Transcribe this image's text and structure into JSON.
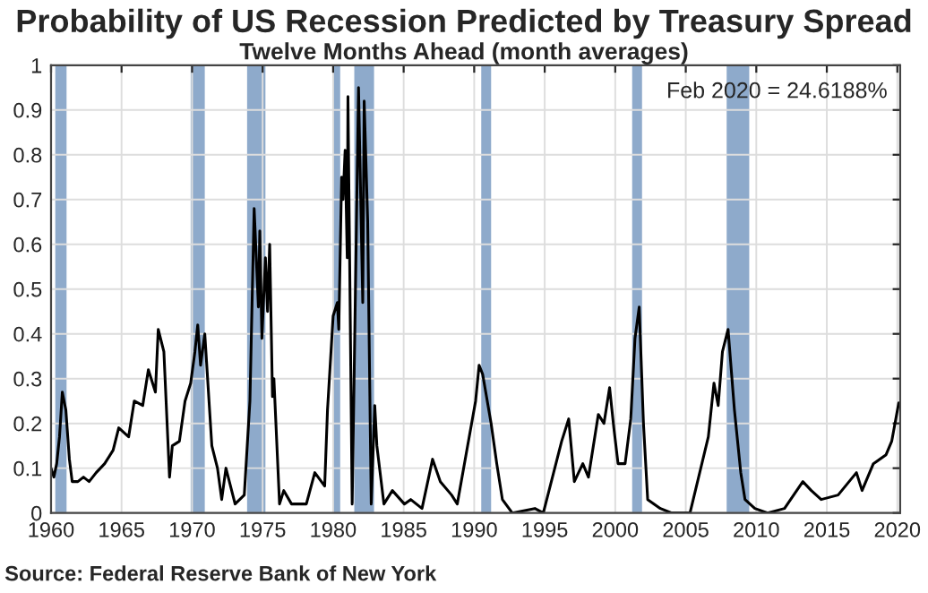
{
  "chart_data": {
    "type": "line",
    "title": "Probability of US Recession Predicted by Treasury Spread",
    "subtitle": "Twelve Months Ahead (month averages)",
    "annotations": [
      "Feb 2020 = 24.6188%",
      "Source: Federal Reserve Bank of New York"
    ],
    "series": [
      {
        "color": "#000000",
        "x": [
          1960.0,
          1960.2,
          1960.4,
          1960.6,
          1960.8,
          1961.05,
          1961.3,
          1961.5,
          1961.9,
          1962.3,
          1962.7,
          1963.2,
          1963.8,
          1964.4,
          1964.8,
          1965.5,
          1965.9,
          1966.5,
          1966.9,
          1967.4,
          1967.6,
          1968.0,
          1968.4,
          1968.6,
          1969.1,
          1969.5,
          1969.9,
          1970.2,
          1970.4,
          1970.6,
          1970.9,
          1971.4,
          1971.8,
          1972.1,
          1972.4,
          1973.05,
          1973.7,
          1974.1,
          1974.4,
          1974.7,
          1974.8,
          1974.95,
          1975.2,
          1975.35,
          1975.5,
          1975.7,
          1975.8,
          1976.2,
          1976.5,
          1977.05,
          1978.1,
          1978.7,
          1979.4,
          1979.6,
          1980.0,
          1980.3,
          1980.4,
          1980.6,
          1980.7,
          1980.85,
          1981.0,
          1981.05,
          1981.35,
          1981.8,
          1982.1,
          1982.2,
          1982.45,
          1982.7,
          1982.95,
          1983.1,
          1983.6,
          1984.2,
          1985.05,
          1985.5,
          1986.3,
          1987.05,
          1987.6,
          1988.4,
          1988.8,
          1990.1,
          1990.35,
          1990.6,
          1991.2,
          1991.6,
          1992.0,
          1992.7,
          1994.3,
          1994.9,
          1996.2,
          1996.7,
          1997.1,
          1997.7,
          1998.1,
          1998.8,
          1999.2,
          1999.6,
          1999.9,
          2000.2,
          2000.7,
          2001.1,
          2001.4,
          2001.7,
          2002.0,
          2002.3,
          2003.2,
          2004.0,
          2005.3,
          2006.6,
          2007.0,
          2007.3,
          2007.6,
          2008.0,
          2008.45,
          2008.9,
          2009.2,
          2009.9,
          2010.8,
          2012.0,
          2013.3,
          2013.9,
          2014.6,
          2015.8,
          2017.1,
          2017.5,
          2018.3,
          2019.2,
          2019.6,
          2020.1
        ],
        "values": [
          0.1,
          0.08,
          0.11,
          0.17,
          0.27,
          0.23,
          0.12,
          0.07,
          0.07,
          0.08,
          0.07,
          0.09,
          0.11,
          0.14,
          0.19,
          0.17,
          0.25,
          0.24,
          0.32,
          0.27,
          0.41,
          0.36,
          0.08,
          0.15,
          0.16,
          0.25,
          0.29,
          0.36,
          0.42,
          0.33,
          0.4,
          0.15,
          0.1,
          0.03,
          0.1,
          0.02,
          0.04,
          0.25,
          0.68,
          0.46,
          0.63,
          0.39,
          0.57,
          0.45,
          0.6,
          0.26,
          0.3,
          0.02,
          0.05,
          0.02,
          0.02,
          0.09,
          0.06,
          0.23,
          0.44,
          0.47,
          0.41,
          0.75,
          0.7,
          0.81,
          0.57,
          0.93,
          0.02,
          0.95,
          0.47,
          0.92,
          0.65,
          0.02,
          0.24,
          0.15,
          0.02,
          0.05,
          0.02,
          0.03,
          0.01,
          0.12,
          0.07,
          0.04,
          0.02,
          0.25,
          0.33,
          0.31,
          0.2,
          0.11,
          0.03,
          0.0,
          0.01,
          0.0,
          0.16,
          0.21,
          0.07,
          0.11,
          0.08,
          0.22,
          0.2,
          0.28,
          0.19,
          0.11,
          0.11,
          0.21,
          0.39,
          0.46,
          0.2,
          0.03,
          0.01,
          0.0,
          0.0,
          0.17,
          0.29,
          0.24,
          0.36,
          0.41,
          0.23,
          0.09,
          0.03,
          0.01,
          0.0,
          0.01,
          0.07,
          0.05,
          0.03,
          0.04,
          0.09,
          0.05,
          0.11,
          0.13,
          0.16,
          0.246
        ]
      }
    ],
    "bands": [
      {
        "axis": "x",
        "from": 1960.3,
        "to": 1961.1,
        "color": "#8eaacb"
      },
      {
        "axis": "x",
        "from": 1969.9,
        "to": 1970.9,
        "color": "#8eaacb"
      },
      {
        "axis": "x",
        "from": 1973.9,
        "to": 1975.2,
        "color": "#8eaacb"
      },
      {
        "axis": "x",
        "from": 1980.0,
        "to": 1980.5,
        "color": "#8eaacb"
      },
      {
        "axis": "x",
        "from": 1981.5,
        "to": 1982.9,
        "color": "#8eaacb"
      },
      {
        "axis": "x",
        "from": 1990.5,
        "to": 1991.2,
        "color": "#8eaacb"
      },
      {
        "axis": "x",
        "from": 2001.2,
        "to": 2001.9,
        "color": "#8eaacb"
      },
      {
        "axis": "x",
        "from": 2007.9,
        "to": 2009.5,
        "color": "#8eaacb"
      }
    ],
    "xlim": [
      1960,
      2020.2
    ],
    "xticks": [
      1960,
      1965,
      1970,
      1975,
      1980,
      1985,
      1990,
      1995,
      2000,
      2005,
      2010,
      2015,
      2020
    ],
    "ylim": [
      0,
      1
    ],
    "yticks": [
      0,
      0.1,
      0.2,
      0.3,
      0.4,
      0.5,
      0.6,
      0.7,
      0.8,
      0.9,
      1
    ],
    "grid": true,
    "line_style": "solid"
  }
}
